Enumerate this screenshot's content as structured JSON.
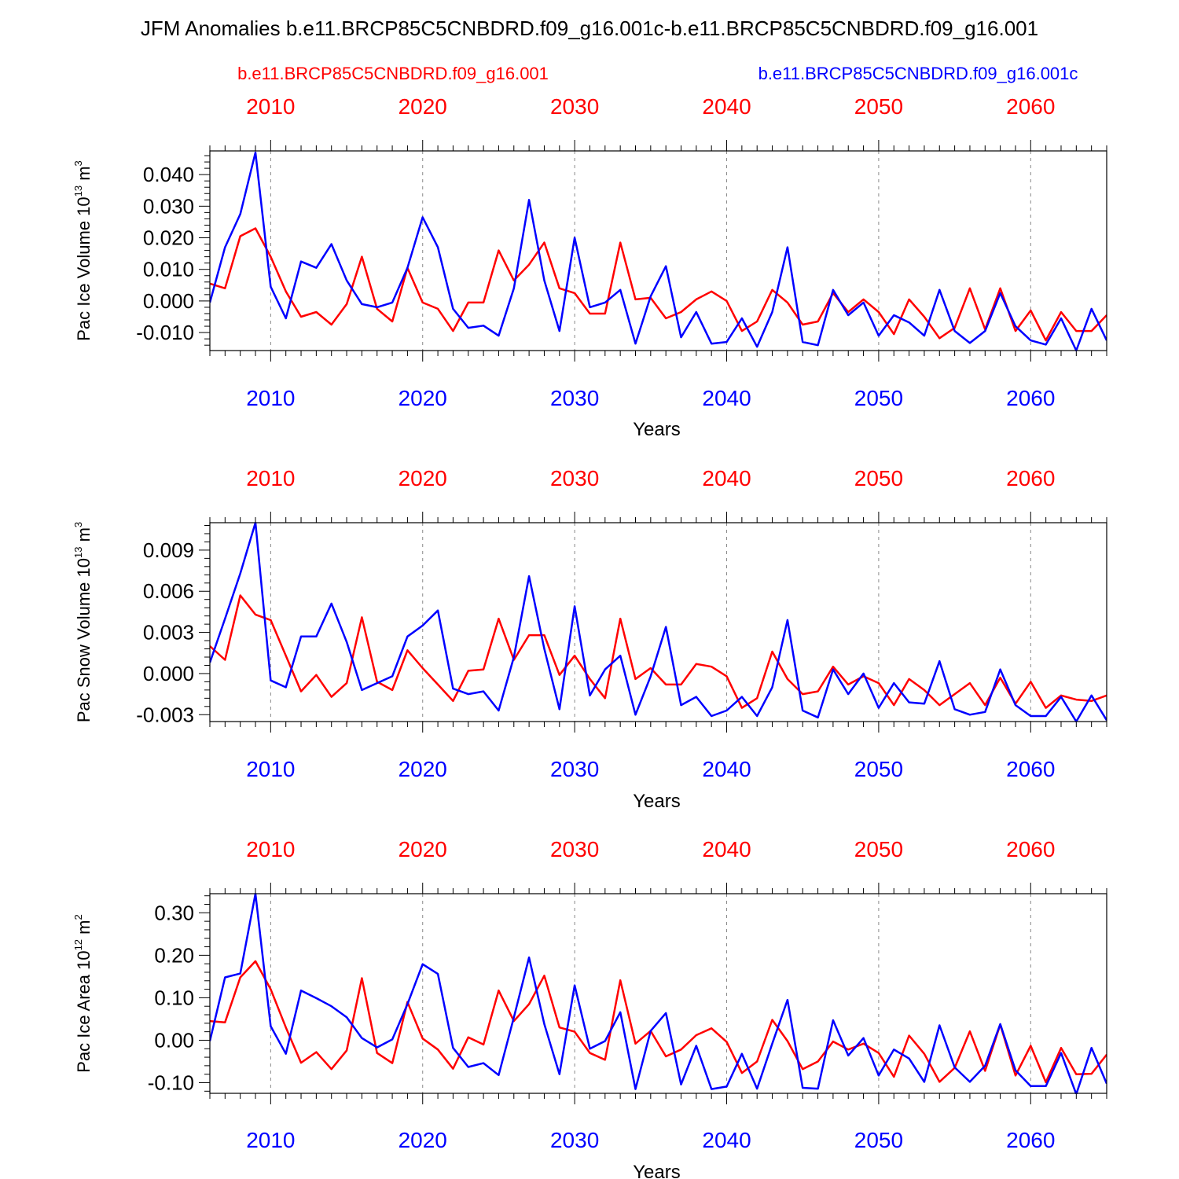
{
  "title": "JFM Anomalies b.e11.BRCP85C5CNBDRD.f09_g16.001c-b.e11.BRCP85C5CNBDRD.f09_g16.001",
  "legend": {
    "red": "b.e11.BRCP85C5CNBDRD.f09_g16.001",
    "blue": "b.e11.BRCP85C5CNBDRD.f09_g16.001c"
  },
  "colors": {
    "red": "#ff0000",
    "blue": "#0000ff",
    "axis": "#000000",
    "grid": "#888888"
  },
  "chart_data": [
    {
      "type": "line",
      "ylabel_main": "Pac Ice Volume 10",
      "ylabel_exp": "13",
      "ylabel_unit": "m",
      "ylabel_unit_exp": "3",
      "xlabel": "Years",
      "xlim": [
        2006,
        2065
      ],
      "ylim": [
        -0.0157,
        0.0475
      ],
      "yticks": [
        -0.01,
        0.0,
        0.01,
        0.02,
        0.03,
        0.04
      ],
      "yticklabels": [
        "-0.010",
        "0.000",
        "0.010",
        "0.020",
        "0.030",
        "0.040"
      ],
      "xticks": [
        2010,
        2020,
        2030,
        2040,
        2050,
        2060
      ],
      "xticklabels": [
        "2010",
        "2020",
        "2030",
        "2040",
        "2050",
        "2060"
      ],
      "grid": "vertical dashed",
      "series": [
        {
          "name": "b.e11.BRCP85C5CNBDRD.f09_g16.001",
          "color": "red",
          "values": [
            0.0055,
            0.004,
            0.0205,
            0.023,
            0.014,
            0.003,
            -0.005,
            -0.0035,
            -0.0075,
            -0.001,
            0.014,
            -0.0025,
            -0.0065,
            0.0105,
            -0.0005,
            -0.0025,
            -0.0095,
            -0.0005,
            -0.0005,
            0.016,
            0.0065,
            0.0115,
            0.0185,
            0.004,
            0.0025,
            -0.004,
            -0.004,
            0.0185,
            0.0005,
            0.001,
            -0.0055,
            -0.0035,
            0.0005,
            0.003,
            0.0,
            -0.0095,
            -0.0065,
            0.0035,
            -0.0005,
            -0.0075,
            -0.0065,
            0.0025,
            -0.0035,
            0.0005,
            -0.0035,
            -0.0105,
            0.0005,
            -0.005,
            -0.0118,
            -0.0085,
            0.004,
            -0.009,
            0.004,
            -0.0095,
            -0.003,
            -0.0125,
            -0.0035,
            -0.0095,
            -0.0095,
            -0.0045
          ]
        },
        {
          "name": "b.e11.BRCP85C5CNBDRD.f09_g16.001c",
          "color": "blue",
          "values": [
            -0.0005,
            0.017,
            0.0275,
            0.047,
            0.0045,
            -0.0055,
            0.0125,
            0.0105,
            0.018,
            0.0065,
            -0.001,
            -0.002,
            -0.0005,
            0.0105,
            0.0265,
            0.017,
            -0.0025,
            -0.0085,
            -0.0078,
            -0.011,
            0.004,
            0.032,
            0.0065,
            -0.0095,
            0.02,
            -0.002,
            -0.0005,
            0.0035,
            -0.0135,
            0.0015,
            0.011,
            -0.0115,
            -0.0035,
            -0.0135,
            -0.013,
            -0.0055,
            -0.0145,
            -0.0035,
            0.017,
            -0.013,
            -0.014,
            0.0035,
            -0.0045,
            -0.0005,
            -0.011,
            -0.0045,
            -0.0068,
            -0.011,
            0.0035,
            -0.0095,
            -0.0133,
            -0.0095,
            0.0025,
            -0.008,
            -0.0125,
            -0.0138,
            -0.0055,
            -0.0157,
            -0.0025,
            -0.0125
          ]
        }
      ]
    },
    {
      "type": "line",
      "ylabel_main": "Pac Snow Volume 10",
      "ylabel_exp": "13",
      "ylabel_unit": "m",
      "ylabel_unit_exp": "3",
      "xlabel": "Years",
      "xlim": [
        2006,
        2065
      ],
      "ylim": [
        -0.0035,
        0.011
      ],
      "yticks": [
        -0.003,
        0.0,
        0.003,
        0.006,
        0.009
      ],
      "yticklabels": [
        "-0.003",
        "0.000",
        "0.003",
        "0.006",
        "0.009"
      ],
      "xticks": [
        2010,
        2020,
        2030,
        2040,
        2050,
        2060
      ],
      "xticklabels": [
        "2010",
        "2020",
        "2030",
        "2040",
        "2050",
        "2060"
      ],
      "grid": "vertical dashed",
      "series": [
        {
          "name": "b.e11.BRCP85C5CNBDRD.f09_g16.001",
          "color": "red",
          "values": [
            0.002,
            0.001,
            0.0057,
            0.0043,
            0.0039,
            0.0013,
            -0.0013,
            -0.0001,
            -0.0017,
            -0.0007,
            0.0041,
            -0.0006,
            -0.0012,
            0.0017,
            0.0004,
            -0.0008,
            -0.002,
            0.0002,
            0.0003,
            0.004,
            0.001,
            0.0028,
            0.0028,
            -0.0001,
            0.0013,
            -0.0004,
            -0.0018,
            0.004,
            -0.0004,
            0.0004,
            -0.0008,
            -0.0008,
            0.0007,
            0.0005,
            -0.0002,
            -0.0025,
            -0.0018,
            0.0016,
            -0.0004,
            -0.0015,
            -0.0013,
            0.0005,
            -0.0008,
            -0.0002,
            -0.0007,
            -0.0023,
            -0.0004,
            -0.0012,
            -0.0023,
            -0.0015,
            -0.0007,
            -0.0023,
            -0.0003,
            -0.0022,
            -0.0006,
            -0.0025,
            -0.0016,
            -0.0019,
            -0.002,
            -0.0016
          ]
        },
        {
          "name": "b.e11.BRCP85C5CNBDRD.f09_g16.001c",
          "color": "blue",
          "values": [
            0.0008,
            0.004,
            0.0073,
            0.011,
            -0.0005,
            -0.001,
            0.0027,
            0.0027,
            0.0051,
            0.0023,
            -0.0012,
            -0.0007,
            -0.0002,
            0.0027,
            0.0035,
            0.0046,
            -0.0011,
            -0.0015,
            -0.0013,
            -0.0027,
            0.0012,
            0.0071,
            0.0018,
            -0.0026,
            0.0049,
            -0.0016,
            0.0003,
            0.0013,
            -0.003,
            -0.0002,
            0.0034,
            -0.0023,
            -0.0017,
            -0.0031,
            -0.0027,
            -0.0017,
            -0.0031,
            -0.001,
            0.0039,
            -0.0027,
            -0.0032,
            0.0003,
            -0.0015,
            0.0,
            -0.0025,
            -0.0007,
            -0.0021,
            -0.0022,
            0.0009,
            -0.0026,
            -0.003,
            -0.0028,
            0.0003,
            -0.0023,
            -0.0031,
            -0.0031,
            -0.0017,
            -0.0035,
            -0.0016,
            -0.0034
          ]
        }
      ]
    },
    {
      "type": "line",
      "ylabel_main": "Pac Ice Area 10",
      "ylabel_exp": "12",
      "ylabel_unit": "m",
      "ylabel_unit_exp": "2",
      "xlabel": "Years",
      "xlim": [
        2006,
        2065
      ],
      "ylim": [
        -0.125,
        0.345
      ],
      "yticks": [
        -0.1,
        0.0,
        0.1,
        0.2,
        0.3
      ],
      "yticklabels": [
        "-0.10",
        "0.00",
        "0.10",
        "0.20",
        "0.30"
      ],
      "xticks": [
        2010,
        2020,
        2030,
        2040,
        2050,
        2060
      ],
      "xticklabels": [
        "2010",
        "2020",
        "2030",
        "2040",
        "2050",
        "2060"
      ],
      "grid": "vertical dashed",
      "series": [
        {
          "name": "b.e11.BRCP85C5CNBDRD.f09_g16.001",
          "color": "red",
          "values": [
            0.045,
            0.042,
            0.148,
            0.186,
            0.12,
            0.03,
            -0.053,
            -0.028,
            -0.068,
            -0.024,
            0.146,
            -0.03,
            -0.054,
            0.09,
            0.004,
            -0.022,
            -0.067,
            0.007,
            -0.01,
            0.117,
            0.045,
            0.085,
            0.152,
            0.03,
            0.02,
            -0.03,
            -0.046,
            0.141,
            -0.008,
            0.022,
            -0.038,
            -0.022,
            0.012,
            0.028,
            -0.004,
            -0.077,
            -0.05,
            0.048,
            -0.002,
            -0.068,
            -0.05,
            -0.003,
            -0.022,
            -0.008,
            -0.03,
            -0.086,
            0.011,
            -0.032,
            -0.098,
            -0.065,
            0.021,
            -0.072,
            0.037,
            -0.083,
            -0.013,
            -0.099,
            -0.018,
            -0.08,
            -0.079,
            -0.034
          ]
        },
        {
          "name": "b.e11.BRCP85C5CNBDRD.f09_g16.001c",
          "color": "blue",
          "values": [
            -0.002,
            0.148,
            0.157,
            0.345,
            0.033,
            -0.032,
            0.117,
            0.099,
            0.08,
            0.054,
            0.005,
            -0.017,
            0.002,
            0.085,
            0.179,
            0.156,
            -0.018,
            -0.063,
            -0.054,
            -0.082,
            0.054,
            0.195,
            0.038,
            -0.08,
            0.129,
            -0.02,
            -0.002,
            0.066,
            -0.115,
            0.022,
            0.064,
            -0.104,
            -0.013,
            -0.115,
            -0.109,
            -0.032,
            -0.114,
            -0.008,
            0.095,
            -0.112,
            -0.114,
            0.047,
            -0.036,
            0.005,
            -0.083,
            -0.022,
            -0.043,
            -0.098,
            0.035,
            -0.064,
            -0.098,
            -0.06,
            0.038,
            -0.071,
            -0.108,
            -0.108,
            -0.03,
            -0.127,
            -0.018,
            -0.102
          ]
        }
      ]
    }
  ]
}
